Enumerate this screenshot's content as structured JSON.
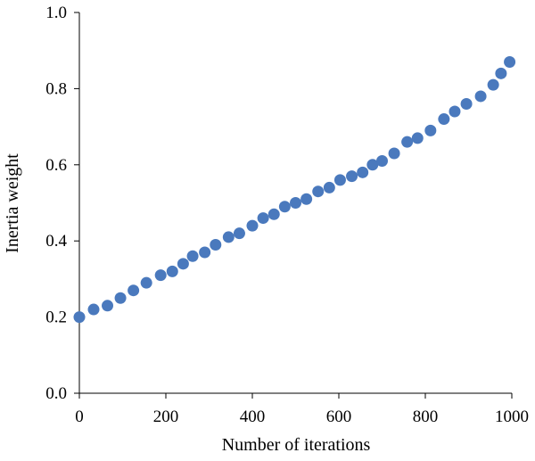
{
  "chart_data": {
    "type": "scatter",
    "title": "",
    "xlabel": "Number of iterations",
    "ylabel": "Inertia weight",
    "xlim": [
      0,
      1000
    ],
    "ylim": [
      0.0,
      1.0
    ],
    "grid": false,
    "legend": "none",
    "marker_color": "#4a79bd",
    "x_ticks": [
      0,
      200,
      400,
      600,
      800,
      1000
    ],
    "x_tick_labels": [
      "0",
      "200",
      "400",
      "600",
      "800",
      "1000"
    ],
    "y_ticks": [
      0.0,
      0.2,
      0.4,
      0.6,
      0.8,
      1.0
    ],
    "y_tick_labels": [
      "0.0",
      "0.2",
      "0.4",
      "0.6",
      "0.8",
      "1.0"
    ],
    "series": [
      {
        "points": [
          {
            "x": 0,
            "y": 0.2
          },
          {
            "x": 33,
            "y": 0.22
          },
          {
            "x": 65,
            "y": 0.23
          },
          {
            "x": 95,
            "y": 0.25
          },
          {
            "x": 125,
            "y": 0.27
          },
          {
            "x": 155,
            "y": 0.29
          },
          {
            "x": 188,
            "y": 0.31
          },
          {
            "x": 215,
            "y": 0.32
          },
          {
            "x": 240,
            "y": 0.34
          },
          {
            "x": 262,
            "y": 0.36
          },
          {
            "x": 290,
            "y": 0.37
          },
          {
            "x": 315,
            "y": 0.39
          },
          {
            "x": 345,
            "y": 0.41
          },
          {
            "x": 370,
            "y": 0.42
          },
          {
            "x": 400,
            "y": 0.44
          },
          {
            "x": 425,
            "y": 0.46
          },
          {
            "x": 450,
            "y": 0.47
          },
          {
            "x": 475,
            "y": 0.49
          },
          {
            "x": 500,
            "y": 0.5
          },
          {
            "x": 525,
            "y": 0.51
          },
          {
            "x": 552,
            "y": 0.53
          },
          {
            "x": 578,
            "y": 0.54
          },
          {
            "x": 603,
            "y": 0.56
          },
          {
            "x": 630,
            "y": 0.57
          },
          {
            "x": 655,
            "y": 0.58
          },
          {
            "x": 678,
            "y": 0.6
          },
          {
            "x": 700,
            "y": 0.61
          },
          {
            "x": 728,
            "y": 0.63
          },
          {
            "x": 758,
            "y": 0.66
          },
          {
            "x": 782,
            "y": 0.67
          },
          {
            "x": 812,
            "y": 0.69
          },
          {
            "x": 843,
            "y": 0.72
          },
          {
            "x": 868,
            "y": 0.74
          },
          {
            "x": 895,
            "y": 0.76
          },
          {
            "x": 928,
            "y": 0.78
          },
          {
            "x": 957,
            "y": 0.81
          },
          {
            "x": 975,
            "y": 0.84
          },
          {
            "x": 995,
            "y": 0.87
          }
        ]
      }
    ]
  }
}
